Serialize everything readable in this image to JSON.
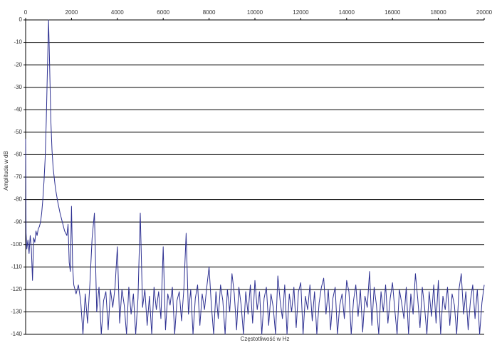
{
  "chart_data": {
    "type": "line",
    "x_label": "Częstotliwość w Hz",
    "y_label": "Amplituda w dB",
    "color": "#2e3192",
    "grid": true,
    "xaxis_position": "top",
    "xlim": [
      0,
      20000
    ],
    "xticks": [
      0,
      2000,
      4000,
      6000,
      8000,
      10000,
      12000,
      14000,
      16000,
      18000,
      20000
    ],
    "ylim": [
      -140,
      0
    ],
    "yticks": [
      0,
      -10,
      -20,
      -30,
      -40,
      -50,
      -60,
      -70,
      -80,
      -90,
      -100,
      -110,
      -120,
      -130,
      -140
    ],
    "x": [
      0,
      20,
      50,
      100,
      150,
      200,
      250,
      300,
      350,
      400,
      450,
      500,
      550,
      600,
      650,
      700,
      750,
      800,
      850,
      900,
      950,
      1000,
      1050,
      1100,
      1150,
      1200,
      1300,
      1400,
      1500,
      1600,
      1700,
      1800,
      1850,
      1900,
      1950,
      2000,
      2050,
      2100,
      2200,
      2300,
      2400,
      2500,
      2600,
      2700,
      2800,
      2900,
      3000,
      3100,
      3200,
      3300,
      3400,
      3500,
      3600,
      3700,
      3800,
      3900,
      4000,
      4100,
      4200,
      4300,
      4400,
      4500,
      4600,
      4700,
      4800,
      4900,
      5000,
      5100,
      5200,
      5300,
      5400,
      5500,
      5600,
      5700,
      5800,
      5900,
      6000,
      6100,
      6200,
      6300,
      6400,
      6500,
      6600,
      6700,
      6800,
      6900,
      7000,
      7100,
      7200,
      7300,
      7400,
      7500,
      7600,
      7700,
      7800,
      7900,
      8000,
      8100,
      8200,
      8300,
      8400,
      8500,
      8600,
      8700,
      8800,
      8900,
      9000,
      9100,
      9200,
      9300,
      9400,
      9500,
      9600,
      9700,
      9800,
      9900,
      10000,
      10100,
      10200,
      10300,
      10400,
      10500,
      10600,
      10700,
      10800,
      10900,
      11000,
      11100,
      11200,
      11300,
      11400,
      11500,
      11600,
      11700,
      11800,
      11900,
      12000,
      12100,
      12200,
      12300,
      12400,
      12500,
      12600,
      12700,
      12800,
      12900,
      13000,
      13100,
      13200,
      13300,
      13400,
      13500,
      13600,
      13700,
      13800,
      13900,
      14000,
      14100,
      14200,
      14300,
      14400,
      14500,
      14600,
      14700,
      14800,
      14900,
      15000,
      15100,
      15200,
      15300,
      15400,
      15500,
      15600,
      15700,
      15800,
      15900,
      16000,
      16100,
      16200,
      16300,
      16400,
      16500,
      16600,
      16700,
      16800,
      16900,
      17000,
      17100,
      17200,
      17300,
      17400,
      17500,
      17600,
      17700,
      17800,
      17900,
      18000,
      18100,
      18200,
      18300,
      18400,
      18500,
      18600,
      18700,
      18800,
      18900,
      19000,
      19100,
      19200,
      19300,
      19400,
      19500,
      19600,
      19700,
      19800,
      19900,
      20000
    ],
    "values": [
      -53,
      -95,
      -102,
      -98,
      -104,
      -96,
      -102,
      -116,
      -97,
      -99,
      -94,
      -96,
      -93,
      -92,
      -90,
      -86,
      -80,
      -72,
      -62,
      -45,
      -22,
      0,
      -22,
      -45,
      -58,
      -66,
      -75,
      -81,
      -86,
      -90,
      -94,
      -96,
      -91,
      -108,
      -112,
      -83,
      -110,
      -118,
      -122,
      -118,
      -125,
      -140,
      -122,
      -135,
      -118,
      -97,
      -86,
      -130,
      -119,
      -140,
      -125,
      -121,
      -138,
      -120,
      -128,
      -119,
      -101,
      -135,
      -120,
      -127,
      -140,
      -119,
      -131,
      -122,
      -140,
      -124,
      -86,
      -128,
      -120,
      -136,
      -123,
      -140,
      -119,
      -129,
      -121,
      -133,
      -101,
      -138,
      -122,
      -127,
      -119,
      -140,
      -125,
      -121,
      -134,
      -120,
      -95,
      -131,
      -120,
      -140,
      -124,
      -118,
      -136,
      -122,
      -129,
      -119,
      -110,
      -127,
      -140,
      -121,
      -133,
      -118,
      -125,
      -140,
      -120,
      -130,
      -113,
      -122,
      -138,
      -119,
      -127,
      -140,
      -121,
      -131,
      -118,
      -135,
      -116,
      -129,
      -121,
      -140,
      -124,
      -119,
      -136,
      -122,
      -128,
      -140,
      -114,
      -125,
      -133,
      -118,
      -140,
      -122,
      -130,
      -119,
      -137,
      -121,
      -117,
      -140,
      -123,
      -129,
      -118,
      -134,
      -121,
      -140,
      -126,
      -119,
      -115,
      -131,
      -120,
      -138,
      -124,
      -119,
      -140,
      -127,
      -122,
      -133,
      -116,
      -121,
      -140,
      -125,
      -118,
      -132,
      -120,
      -139,
      -123,
      -128,
      -112,
      -136,
      -119,
      -127,
      -140,
      -121,
      -130,
      -118,
      -135,
      -124,
      -117,
      -129,
      -140,
      -120,
      -126,
      -133,
      -119,
      -140,
      -122,
      -131,
      -113,
      -124,
      -137,
      -119,
      -128,
      -140,
      -121,
      -132,
      -118,
      -135,
      -116,
      -140,
      -123,
      -129,
      -119,
      -136,
      -122,
      -127,
      -140,
      -120,
      -113,
      -131,
      -121,
      -138,
      -125,
      -118,
      -133,
      -120,
      -140,
      -126,
      -118
    ]
  }
}
